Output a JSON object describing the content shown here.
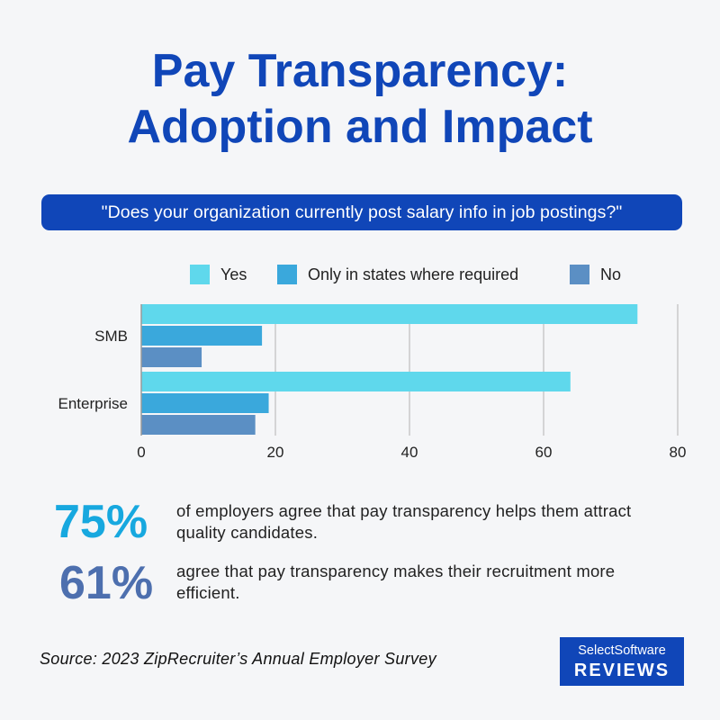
{
  "title_line1": "Pay Transparency:",
  "title_line2": "Adoption and Impact",
  "question": "\"Does your organization currently post salary info in job postings?\"",
  "chart_data": {
    "type": "bar",
    "orientation": "horizontal",
    "categories": [
      "SMB",
      "Enterprise"
    ],
    "series": [
      {
        "name": "Yes",
        "values": [
          74,
          64
        ],
        "color": "#5fd8ec"
      },
      {
        "name": "Only in states where required",
        "values": [
          18,
          19
        ],
        "color": "#3aa8dc"
      },
      {
        "name": "No",
        "values": [
          9,
          17
        ],
        "color": "#5b8fc4"
      }
    ],
    "xlim": [
      0,
      80
    ],
    "xticks": [
      "0",
      "20",
      "40",
      "60",
      "80"
    ],
    "grid": true,
    "legend_position": "top"
  },
  "stats": [
    {
      "value": "75%",
      "text": "of employers agree that pay transparency helps them attract quality candidates.",
      "color": "#17a8df"
    },
    {
      "value": "61%",
      "text": "agree that pay transparency makes their recruitment more efficient.",
      "color": "#4d6fae"
    }
  ],
  "source": "Source: 2023 ZipRecruiter’s Annual Employer Survey",
  "logo": {
    "top": "SelectSoftware",
    "bottom": "REVIEWS"
  }
}
